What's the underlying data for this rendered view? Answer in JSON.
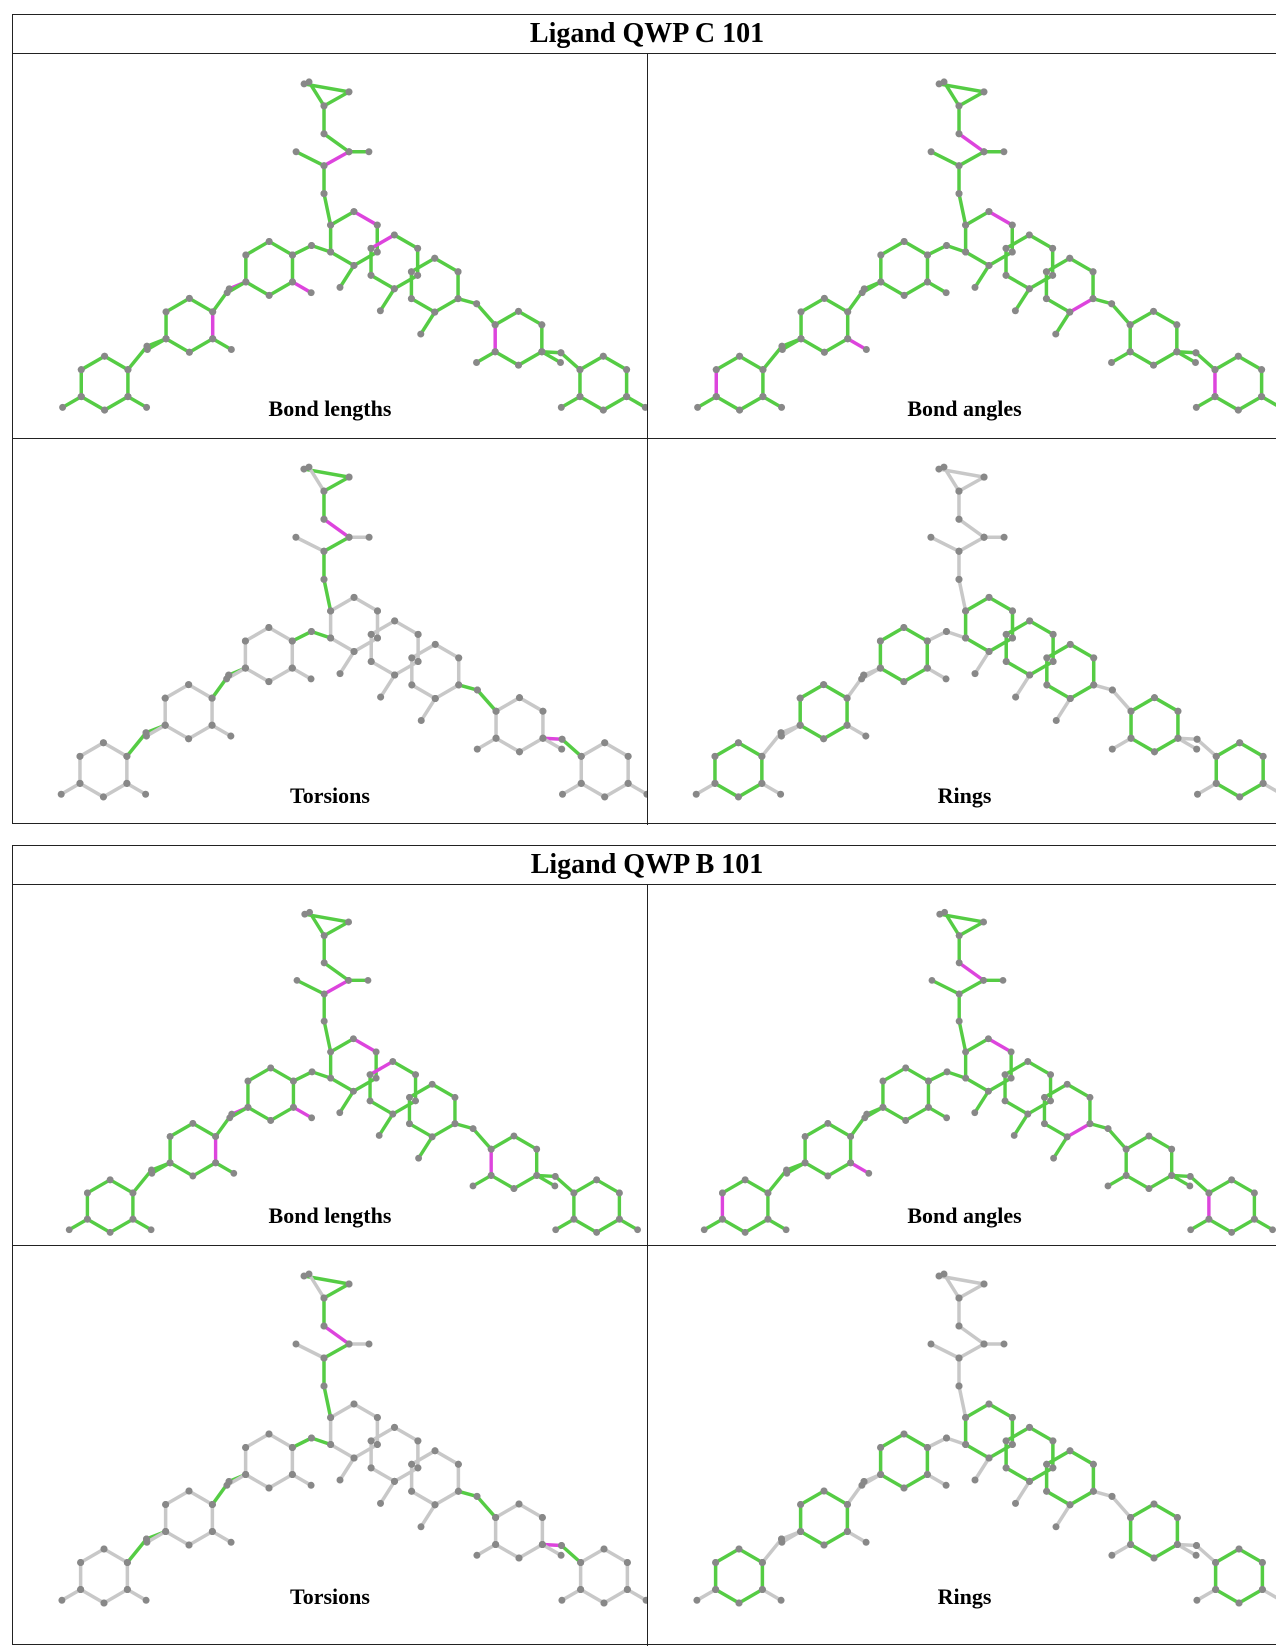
{
  "tables": [
    {
      "title": "Ligand QWP C 101",
      "panels": [
        "Bond lengths",
        "Bond angles",
        "Torsions",
        "Rings"
      ]
    },
    {
      "title": "Ligand QWP B 101",
      "panels": [
        "Bond lengths",
        "Bond angles",
        "Torsions",
        "Rings"
      ]
    }
  ]
}
